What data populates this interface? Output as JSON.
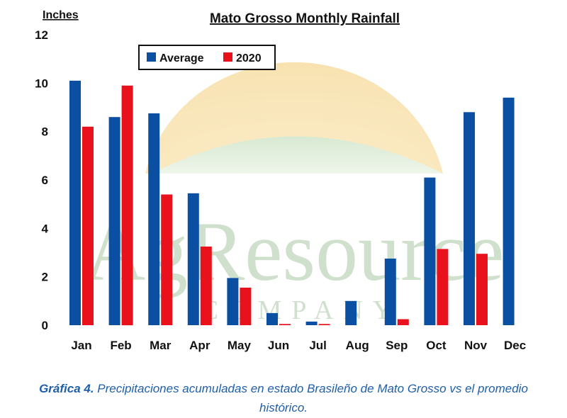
{
  "chart_data": {
    "type": "bar",
    "title": "Mato Grosso Monthly Rainfall",
    "ylabel": "Inches",
    "xlabel": "",
    "ylim": [
      0,
      12
    ],
    "yticks": [
      0,
      2,
      4,
      6,
      8,
      10,
      12
    ],
    "categories": [
      "Jan",
      "Feb",
      "Mar",
      "Apr",
      "May",
      "Jun",
      "Jul",
      "Aug",
      "Sep",
      "Oct",
      "Nov",
      "Dec"
    ],
    "series": [
      {
        "name": "Average",
        "color": "#0b4fa3",
        "values": [
          10.1,
          8.6,
          8.75,
          5.45,
          1.95,
          0.5,
          0.15,
          1.0,
          2.75,
          6.1,
          8.8,
          9.4
        ]
      },
      {
        "name": "2020",
        "color": "#e8111c",
        "values": [
          8.2,
          9.9,
          5.4,
          3.25,
          1.55,
          0.05,
          0.05,
          null,
          0.25,
          3.15,
          2.95,
          null
        ]
      }
    ],
    "legend": {
      "position": "top-left",
      "boxed": true
    },
    "grid": false,
    "watermark": {
      "text": "AgResource",
      "subtext": "COMPANY"
    }
  },
  "caption": {
    "label": "Gráfica 4.",
    "text": " Precipitaciones acumuladas en estado Brasileño de Mato Grosso vs el promedio histórico."
  }
}
